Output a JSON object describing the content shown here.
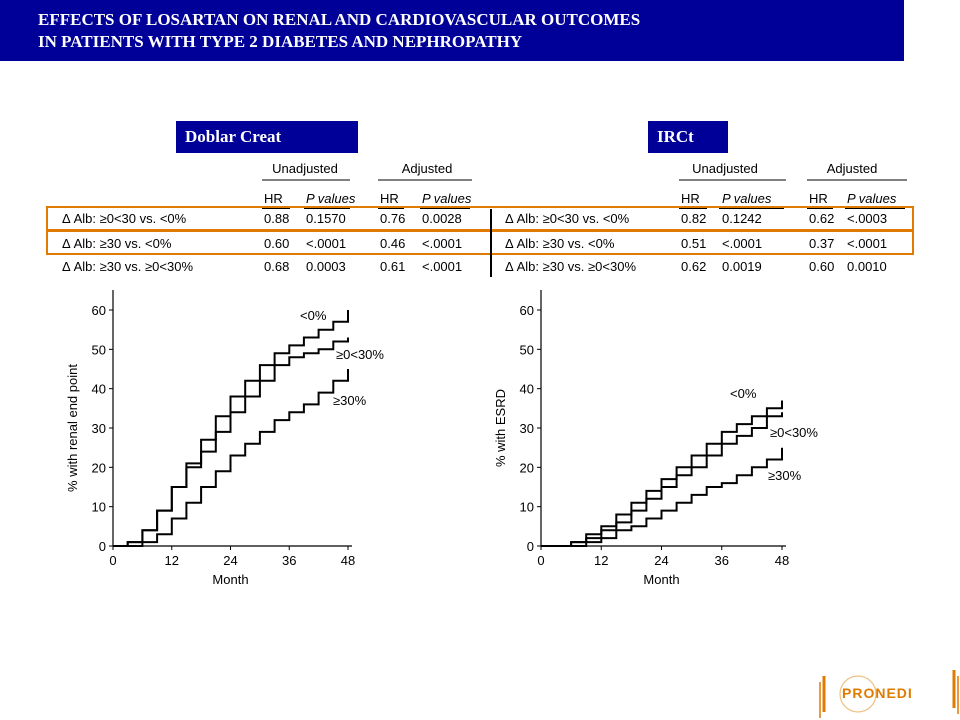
{
  "title": {
    "line1": "EFFECTS OF LOSARTAN ON RENAL AND CARDIOVASCULAR  OUTCOMES",
    "line2": "IN PATIENTS WITH TYPE 2 DIABETES AND NEPHROPATHY"
  },
  "panel_labels": {
    "left": "Doblar Creat",
    "right": "IRCt"
  },
  "tables": [
    {
      "group_headers": [
        "Unadjusted",
        "Adjusted"
      ],
      "col_headers": [
        "HR",
        "P values",
        "HR",
        "P values"
      ],
      "rows": [
        {
          "label": "Δ Alb:  ≥0<30 vs. <0%",
          "cells": [
            "0.88",
            "0.1570",
            "0.76",
            "0.0028"
          ],
          "highlighted": true
        },
        {
          "label": "Δ Alb:  ≥30 vs. <0%",
          "cells": [
            "0.60",
            "<.0001",
            "0.46",
            "<.0001"
          ],
          "highlighted": true
        },
        {
          "label": "Δ Alb:  ≥30 vs. ≥0<30%",
          "cells": [
            "0.68",
            "0.0003",
            "0.61",
            "<.0001"
          ],
          "highlighted": false
        }
      ]
    },
    {
      "group_headers": [
        "Unadjusted",
        "Adjusted"
      ],
      "col_headers": [
        "HR",
        "P values",
        "HR",
        "P values"
      ],
      "rows": [
        {
          "label": "Δ Alb:  ≥0<30 vs. <0%",
          "cells": [
            "0.82",
            "0.1242",
            "0.62",
            "<.0003"
          ],
          "highlighted": true
        },
        {
          "label": "Δ Alb:  ≥30 vs. <0%",
          "cells": [
            "0.51",
            "<.0001",
            "0.37",
            "<.0001"
          ],
          "highlighted": true
        },
        {
          "label": "Δ Alb:  ≥30 vs. ≥0<30%",
          "cells": [
            "0.62",
            "0.0019",
            "0.60",
            "0.0010"
          ],
          "highlighted": false
        }
      ]
    }
  ],
  "colors": {
    "title_bg": "#000099",
    "highlight": "#e07a00",
    "line": "#000000"
  },
  "chart_data": [
    {
      "type": "line",
      "xlabel": "Month",
      "ylabel": "% with renal end point",
      "xlim": [
        0,
        48
      ],
      "ylim": [
        0,
        60
      ],
      "xticks": [
        0,
        12,
        24,
        36,
        48
      ],
      "yticks": [
        0,
        10,
        20,
        30,
        40,
        50,
        60
      ],
      "series": [
        {
          "name": "<0%",
          "x": [
            0,
            3,
            6,
            9,
            12,
            15,
            18,
            21,
            24,
            27,
            30,
            33,
            36,
            39,
            42,
            45,
            48
          ],
          "y": [
            0,
            1,
            4,
            9,
            15,
            21,
            27,
            33,
            38,
            42,
            46,
            49,
            51,
            53,
            55,
            57,
            60
          ]
        },
        {
          "name": "≥0<30%",
          "x": [
            0,
            3,
            6,
            9,
            12,
            15,
            18,
            21,
            24,
            27,
            30,
            33,
            36,
            39,
            42,
            45,
            48
          ],
          "y": [
            0,
            1,
            4,
            9,
            15,
            20,
            24,
            29,
            34,
            38,
            42,
            46,
            48,
            49,
            50,
            52,
            53
          ]
        },
        {
          "name": "≥30%",
          "x": [
            0,
            3,
            6,
            9,
            12,
            15,
            18,
            21,
            24,
            27,
            30,
            33,
            36,
            39,
            42,
            45,
            48
          ],
          "y": [
            0,
            0,
            1,
            3,
            7,
            11,
            15,
            19,
            23,
            26,
            29,
            32,
            34,
            36,
            39,
            42,
            45
          ]
        }
      ]
    },
    {
      "type": "line",
      "xlabel": "Month",
      "ylabel": "% with ESRD",
      "xlim": [
        0,
        48
      ],
      "ylim": [
        0,
        60
      ],
      "xticks": [
        0,
        12,
        24,
        36,
        48
      ],
      "yticks": [
        0,
        10,
        20,
        30,
        40,
        50,
        60
      ],
      "series": [
        {
          "name": "<0%",
          "x": [
            0,
            3,
            6,
            9,
            12,
            15,
            18,
            21,
            24,
            27,
            30,
            33,
            36,
            39,
            42,
            45,
            48
          ],
          "y": [
            0,
            0,
            1,
            3,
            5,
            8,
            11,
            14,
            17,
            20,
            23,
            26,
            29,
            31,
            33,
            35,
            37
          ]
        },
        {
          "name": "≥0<30%",
          "x": [
            0,
            3,
            6,
            9,
            12,
            15,
            18,
            21,
            24,
            27,
            30,
            33,
            36,
            39,
            42,
            45,
            48
          ],
          "y": [
            0,
            0,
            1,
            2,
            4,
            6,
            9,
            12,
            15,
            18,
            20,
            23,
            26,
            28,
            30,
            33,
            34
          ]
        },
        {
          "name": "≥30%",
          "x": [
            0,
            3,
            6,
            9,
            12,
            15,
            18,
            21,
            24,
            27,
            30,
            33,
            36,
            39,
            42,
            45,
            48
          ],
          "y": [
            0,
            0,
            0,
            1,
            2,
            4,
            5,
            7,
            9,
            11,
            13,
            15,
            16,
            18,
            20,
            22,
            25
          ]
        }
      ]
    }
  ],
  "logo": {
    "text": "PRONEDI"
  }
}
